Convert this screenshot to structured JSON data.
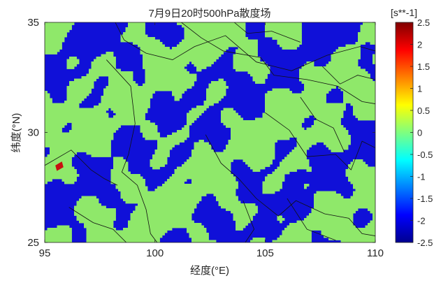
{
  "chart_data": {
    "type": "heatmap",
    "title": "7月9日20时500hPa散度场",
    "xlabel": "经度(°E)",
    "ylabel": "纬度(°N)",
    "xlim": [
      95,
      110
    ],
    "ylim": [
      25,
      35
    ],
    "xticks": [
      "95",
      "100",
      "105",
      "110"
    ],
    "yticks": [
      "25",
      "30",
      "35"
    ],
    "colorbar": {
      "unit_label": "[s**-1]",
      "range": [
        -2.5,
        2.5
      ],
      "ticks": [
        "2.5",
        "2",
        "1.5",
        "1",
        "0.5",
        "0",
        "-0.5",
        "-1",
        "-1.5",
        "-2",
        "-2.5"
      ],
      "colormap": "jet"
    },
    "levels": {
      "dominant_values": [
        -2.5,
        0
      ],
      "dominant_colors": [
        "#1010d8",
        "#8fe86a"
      ],
      "extreme_value": 2.5,
      "extreme_color": "#c81010"
    },
    "grid": false,
    "has_boundary_lines": true
  }
}
